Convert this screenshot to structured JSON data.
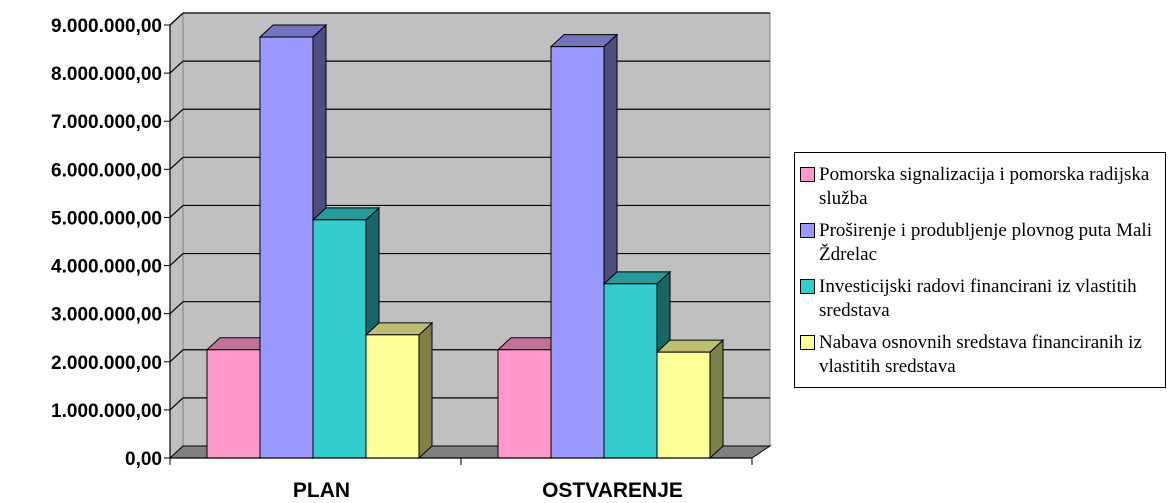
{
  "chart_data": {
    "type": "bar",
    "categories": [
      "PLAN",
      "OSTVARENJE"
    ],
    "series": [
      {
        "name": "Pomorska signalizacija i pomorska radijska služba",
        "color": "#ff99cc",
        "values": [
          2250000,
          2250000
        ]
      },
      {
        "name": "Proširenje i produbljenje plovnog puta Mali Ždrelac",
        "color": "#9999ff",
        "values": [
          8750000,
          8550000
        ]
      },
      {
        "name": "Investicijski radovi financirani iz vlastitih sredstava",
        "color": "#33cccc",
        "values": [
          4950000,
          3620000
        ]
      },
      {
        "name": "Nabava osnovnih sredstava financiranih iz vlastitih sredstava",
        "color": "#ffff99",
        "values": [
          2560000,
          2200000
        ]
      }
    ],
    "yticks": [
      "0,00",
      "1.000.000,00",
      "2.000.000,00",
      "3.000.000,00",
      "4.000.000,00",
      "5.000.000,00",
      "6.000.000,00",
      "7.000.000,00",
      "8.000.000,00",
      "9.000.000,00"
    ],
    "ylim": [
      0,
      9000000
    ],
    "grid": true,
    "legend": "right",
    "background_color": "#c0c0c0",
    "floor_color": "#808080"
  }
}
